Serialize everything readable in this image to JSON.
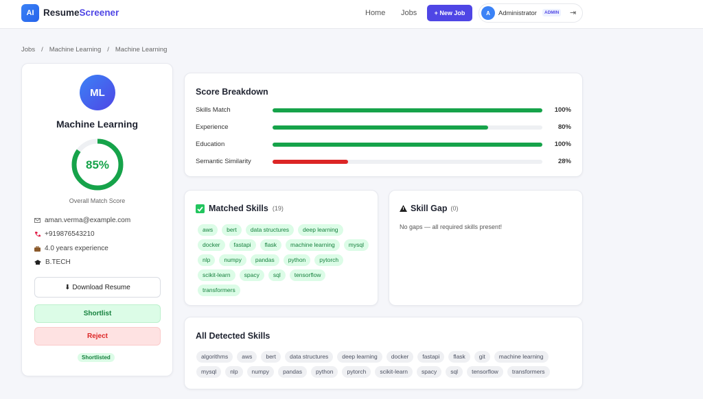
{
  "nav": {
    "logo": "AI",
    "brand_first": "Resume",
    "brand_second": "Screener",
    "links": [
      "Home",
      "Jobs"
    ],
    "new_job": "+ New Job",
    "avatar": "A",
    "user": "Administrator",
    "role": "ADMIN",
    "logout": "⇥"
  },
  "breadcrumb": {
    "items": [
      "Jobs",
      "Machine Learning",
      "Machine Learning"
    ],
    "separator": "/"
  },
  "profile": {
    "initials": "ML",
    "name": "Machine Learning",
    "score": 85,
    "score_label": "85%",
    "score_caption": "Overall Match Score",
    "email": "aman.verma@example.com",
    "phone": "+919876543210",
    "experience": "4.0 years experience",
    "education": "B.TECH",
    "download": "⬇ Download Resume",
    "shortlist": "Shortlist",
    "reject": "Reject",
    "status": "Shortlisted"
  },
  "score_breakdown": {
    "title": "Score Breakdown",
    "rows": [
      {
        "label": "Skills Match",
        "value": 100,
        "value_label": "100%",
        "color": "#16a34a"
      },
      {
        "label": "Experience",
        "value": 80,
        "value_label": "80%",
        "color": "#16a34a"
      },
      {
        "label": "Education",
        "value": 100,
        "value_label": "100%",
        "color": "#16a34a"
      },
      {
        "label": "Semantic Similarity",
        "value": 28,
        "value_label": "28%",
        "color": "#dc2626"
      }
    ]
  },
  "matched_skills": {
    "title": "Matched Skills",
    "count": "(19)",
    "skills": [
      "aws",
      "bert",
      "data structures",
      "deep learning",
      "docker",
      "fastapi",
      "flask",
      "machine learning",
      "mysql",
      "nlp",
      "numpy",
      "pandas",
      "python",
      "pytorch",
      "scikit-learn",
      "spacy",
      "sql",
      "tensorflow",
      "transformers"
    ]
  },
  "skill_gap": {
    "title": "Skill Gap",
    "count": "(0)",
    "message": "No gaps — all required skills present!"
  },
  "all_skills": {
    "title": "All Detected Skills",
    "skills": [
      "algorithms",
      "aws",
      "bert",
      "data structures",
      "deep learning",
      "docker",
      "fastapi",
      "flask",
      "git",
      "machine learning",
      "mysql",
      "nlp",
      "numpy",
      "pandas",
      "python",
      "pytorch",
      "scikit-learn",
      "spacy",
      "sql",
      "tensorflow",
      "transformers"
    ]
  }
}
